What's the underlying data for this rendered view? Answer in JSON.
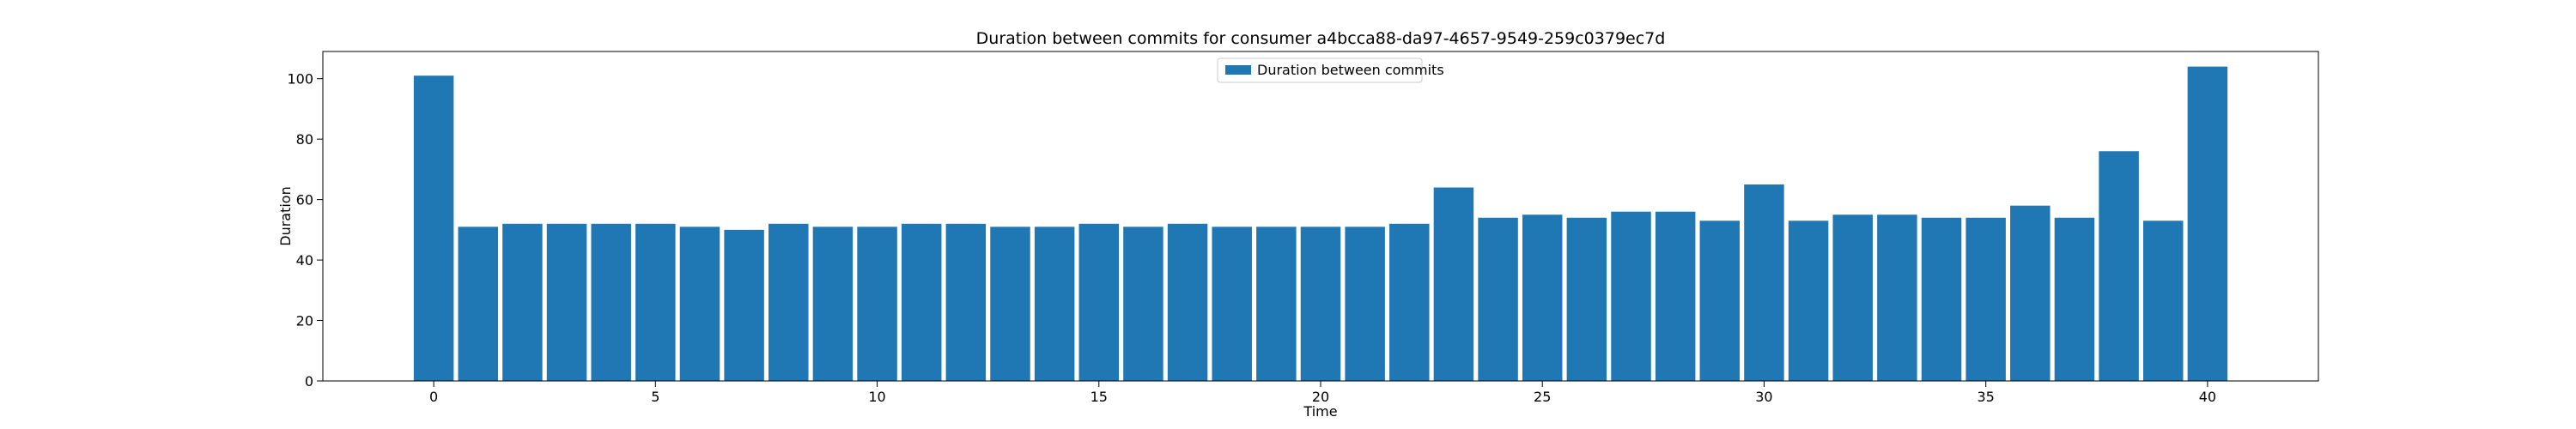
{
  "chart_data": {
    "type": "bar",
    "title": "Duration between commits for consumer a4bcca88-da97-4657-9549-259c0379ec7d",
    "xlabel": "Time",
    "ylabel": "Duration",
    "xlim": [
      -2.5,
      42.5
    ],
    "ylim": [
      0,
      109
    ],
    "xticks": [
      0,
      5,
      10,
      15,
      20,
      25,
      30,
      35,
      40
    ],
    "yticks": [
      0,
      20,
      40,
      60,
      80,
      100
    ],
    "grid": false,
    "legend_position": "top-center",
    "series": [
      {
        "name": "Duration between commits",
        "color": "#1f77b4",
        "x": [
          0,
          1,
          2,
          3,
          4,
          5,
          6,
          7,
          8,
          9,
          10,
          11,
          12,
          13,
          14,
          15,
          16,
          17,
          18,
          19,
          20,
          21,
          22,
          23,
          24,
          25,
          26,
          27,
          28,
          29,
          30,
          31,
          32,
          33,
          34,
          35,
          36,
          37,
          38,
          39,
          40
        ],
        "values": [
          101,
          51,
          52,
          52,
          52,
          52,
          51,
          50,
          52,
          51,
          51,
          52,
          52,
          51,
          51,
          52,
          51,
          52,
          51,
          51,
          51,
          51,
          52,
          64,
          54,
          55,
          54,
          56,
          56,
          53,
          65,
          53,
          55,
          55,
          54,
          54,
          58,
          54,
          76,
          53,
          104
        ]
      }
    ]
  }
}
